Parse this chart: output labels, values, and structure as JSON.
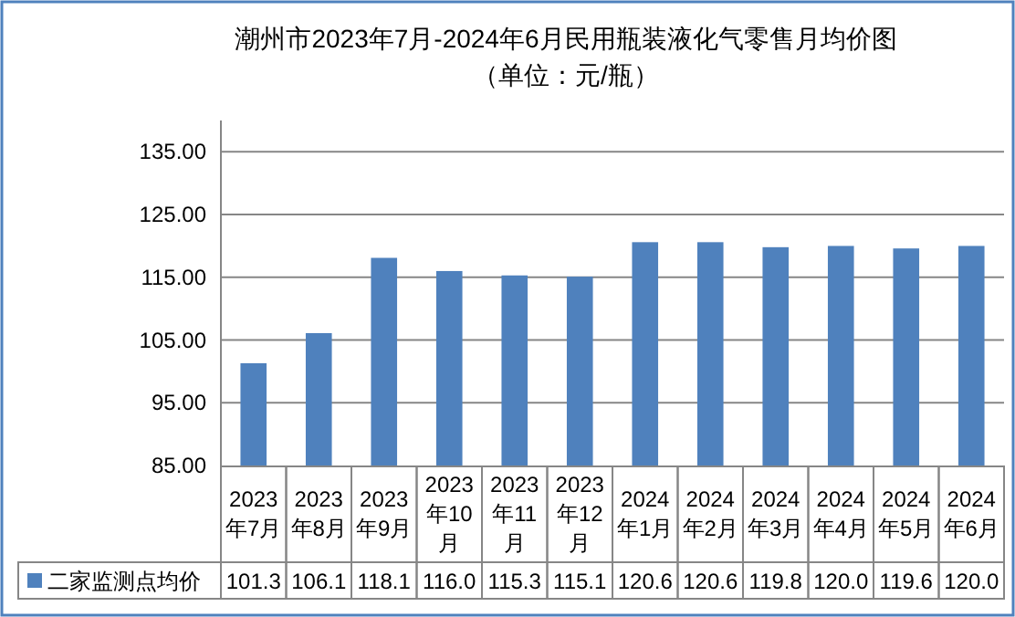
{
  "chart_data": {
    "type": "bar",
    "title": "潮州市2023年7月-2024年6月民用瓶装液化气零售月均价图",
    "subtitle": "（单位：元/瓶）",
    "categories": [
      "2023年7月",
      "2023年8月",
      "2023年9月",
      "2023年10月",
      "2023年11月",
      "2023年12月",
      "2024年1月",
      "2024年2月",
      "2024年3月",
      "2024年4月",
      "2024年5月",
      "2024年6月"
    ],
    "series": [
      {
        "name": "二家监测点均价",
        "color": "#4f81bd",
        "values": [
          101.3,
          106.1,
          118.1,
          116.0,
          115.3,
          115.1,
          120.6,
          120.6,
          119.8,
          120.0,
          119.6,
          120.0
        ],
        "value_labels": [
          "101.3",
          "106.1",
          "118.1",
          "116.0",
          "115.3",
          "115.1",
          "120.6",
          "120.6",
          "119.8",
          "120.0",
          "119.6",
          "120.0"
        ]
      }
    ],
    "ylim": [
      85,
      140
    ],
    "yticks": [
      {
        "value": 85,
        "label": "85.00"
      },
      {
        "value": 95,
        "label": "95.00"
      },
      {
        "value": 105,
        "label": "105.00"
      },
      {
        "value": 115,
        "label": "115.00"
      },
      {
        "value": 125,
        "label": "125.00"
      },
      {
        "value": 135,
        "label": "135.00"
      }
    ],
    "grid": "y",
    "legend": "bottom left"
  }
}
